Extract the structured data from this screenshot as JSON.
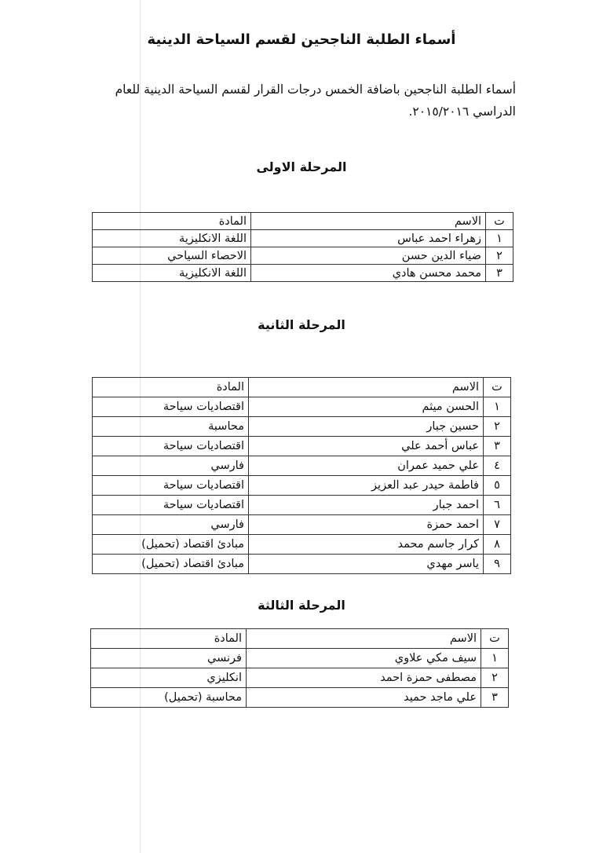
{
  "title": "أسماء الطلبة الناجحين لقسم السياحة الدينية",
  "intro": "أسماء الطلبة الناجحين باضافة الخمس درجات القرار لقسم السياحة الدينية للعام الدراسي ٢٠١٥/٢٠١٦.",
  "headers": {
    "num": "ت",
    "name": "الاسم",
    "subject": "المادة"
  },
  "stages": [
    {
      "heading": "المرحلة الاولى",
      "rows": [
        {
          "num": "١",
          "name": "زهراء احمد عباس",
          "subject": "اللغة الانكليزية"
        },
        {
          "num": "٢",
          "name": "ضياء الدين حسن",
          "subject": "الاحصاء السياحي"
        },
        {
          "num": "٣",
          "name": "محمد محسن هادي",
          "subject": "اللغة الانكليزية"
        }
      ]
    },
    {
      "heading": "المرحلة الثانية",
      "rows": [
        {
          "num": "١",
          "name": "الحسن ميثم",
          "subject": "اقتصاديات سياحة"
        },
        {
          "num": "٢",
          "name": "حسين جبار",
          "subject": "محاسبة"
        },
        {
          "num": "٣",
          "name": "عباس أحمد علي",
          "subject": "اقتصاديات سياحة"
        },
        {
          "num": "٤",
          "name": "علي حميد عمران",
          "subject": "فارسي"
        },
        {
          "num": "٥",
          "name": "فاطمة حيدر عبد العزيز",
          "subject": "اقتصاديات سياحة"
        },
        {
          "num": "٦",
          "name": "احمد جبار",
          "subject": "اقتصاديات سياحة"
        },
        {
          "num": "٧",
          "name": "احمد حمزة",
          "subject": "فارسي"
        },
        {
          "num": "٨",
          "name": "كرار جاسم محمد",
          "subject": "مبادئ اقتصاد (تحميل)"
        },
        {
          "num": "٩",
          "name": "ياسر مهدي",
          "subject": "مبادئ اقتصاد (تحميل)"
        }
      ]
    },
    {
      "heading": "المرحلة الثالثة",
      "rows": [
        {
          "num": "١",
          "name": "سيف مكي علاوي",
          "subject": "فرنسي"
        },
        {
          "num": "٢",
          "name": "مصطفى حمزة احمد",
          "subject": "انكليزي"
        },
        {
          "num": "٣",
          "name": "علي ماجد حميد",
          "subject": "محاسبة (تحميل)"
        }
      ]
    }
  ]
}
